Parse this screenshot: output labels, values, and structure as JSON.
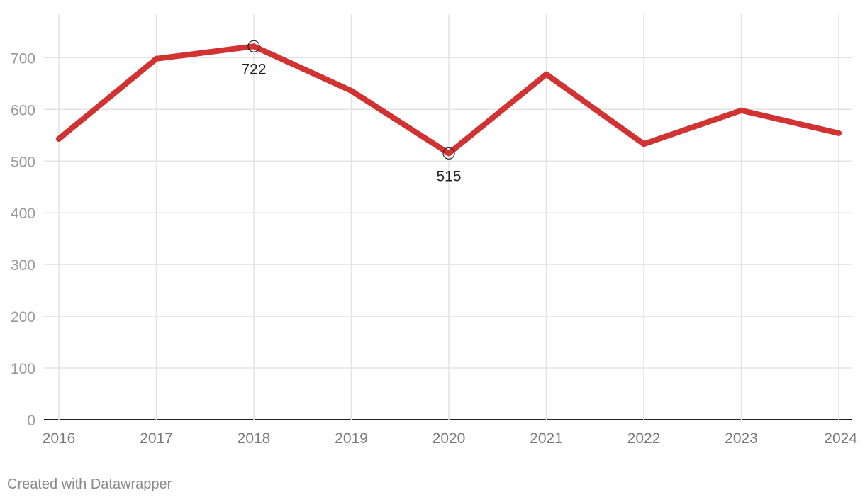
{
  "chart_data": {
    "type": "line",
    "x": [
      "2016",
      "2017",
      "2018",
      "2019",
      "2020",
      "2021",
      "2022",
      "2023",
      "2024"
    ],
    "series": [
      {
        "values": [
          543,
          698,
          722,
          636,
          515,
          668,
          533,
          598,
          554
        ],
        "color": "#d13232"
      }
    ],
    "ylim": [
      0,
      770
    ],
    "yticks": [
      0,
      100,
      200,
      300,
      400,
      500,
      600,
      700
    ],
    "grid": true,
    "annotations": [
      {
        "x": "2018",
        "value": 722,
        "label": "722"
      },
      {
        "x": "2020",
        "value": 515,
        "label": "515"
      }
    ]
  },
  "footer": {
    "credit": "Created with Datawrapper"
  }
}
